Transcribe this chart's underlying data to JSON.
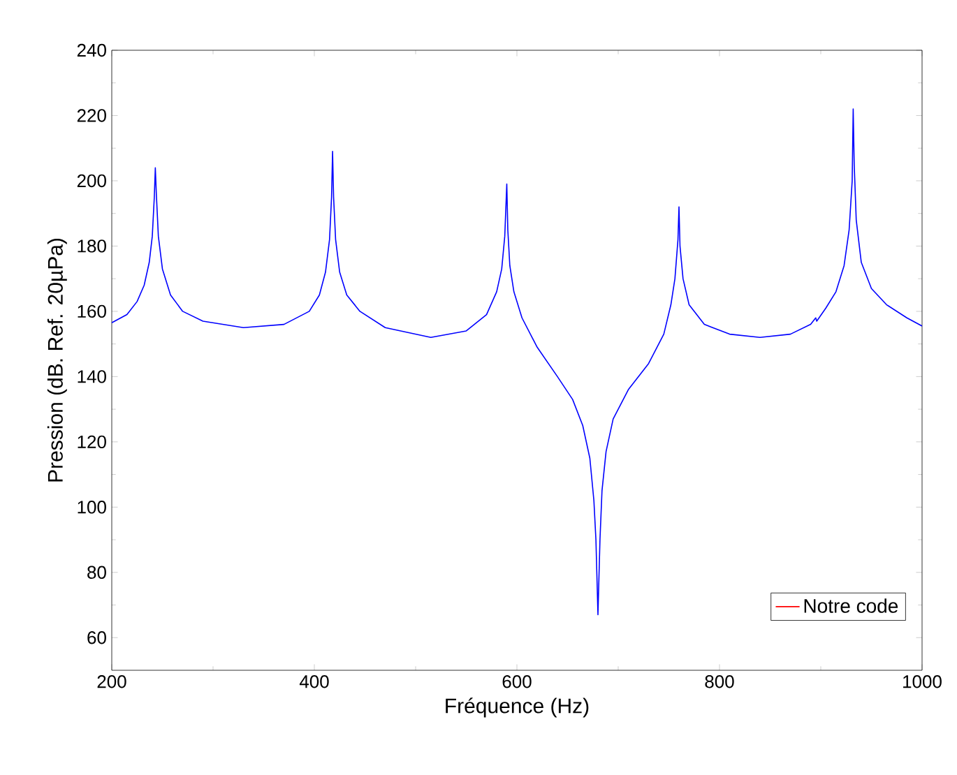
{
  "chart_data": {
    "type": "line",
    "xlabel": "Fréquence (Hz)",
    "ylabel": "Pression (dB. Ref. 20µPa)",
    "xlim": [
      200,
      1000
    ],
    "xticks": [
      200,
      400,
      600,
      800,
      1000
    ],
    "ylim": [
      50,
      240
    ],
    "yticks": [
      60,
      80,
      100,
      120,
      140,
      160,
      180,
      200,
      220,
      240
    ],
    "legend": "bottom right",
    "grid": false,
    "series": [
      {
        "name": "Notre code",
        "color": "#ff0000"
      },
      {
        "color": "#0000ff",
        "x": [
          200,
          215,
          225,
          232,
          237,
          240,
          242,
          243,
          244,
          246,
          250,
          258,
          270,
          290,
          330,
          370,
          395,
          405,
          411,
          415,
          417,
          418,
          419,
          421,
          425,
          432,
          445,
          470,
          515,
          550,
          570,
          580,
          585,
          588,
          590,
          591,
          593,
          597,
          605,
          620,
          640,
          655,
          665,
          672,
          676,
          678,
          680,
          682,
          684,
          688,
          695,
          710,
          730,
          745,
          752,
          756,
          759,
          760,
          761,
          764,
          770,
          785,
          810,
          840,
          870,
          890,
          895,
          896,
          905,
          915,
          923,
          928,
          931,
          932,
          933,
          935,
          940,
          950,
          965,
          985,
          1000
        ],
        "values": [
          156.5,
          159,
          163,
          168,
          175,
          183,
          195,
          204,
          196,
          183,
          173,
          165,
          160,
          157,
          155,
          156,
          160,
          165,
          172,
          182,
          195,
          209,
          195,
          182,
          172,
          165,
          160,
          155,
          152,
          154,
          159,
          166,
          173,
          183,
          199,
          185,
          174,
          166,
          158,
          149,
          140,
          133,
          125,
          115,
          102,
          90,
          67,
          90,
          105,
          117,
          127,
          136,
          144,
          153,
          162,
          170,
          182,
          192,
          180,
          170,
          162,
          156,
          153,
          152,
          153,
          156,
          158,
          157,
          161,
          166,
          174,
          185,
          200,
          222,
          205,
          188,
          175,
          167,
          162,
          158,
          155.5
        ]
      }
    ]
  }
}
